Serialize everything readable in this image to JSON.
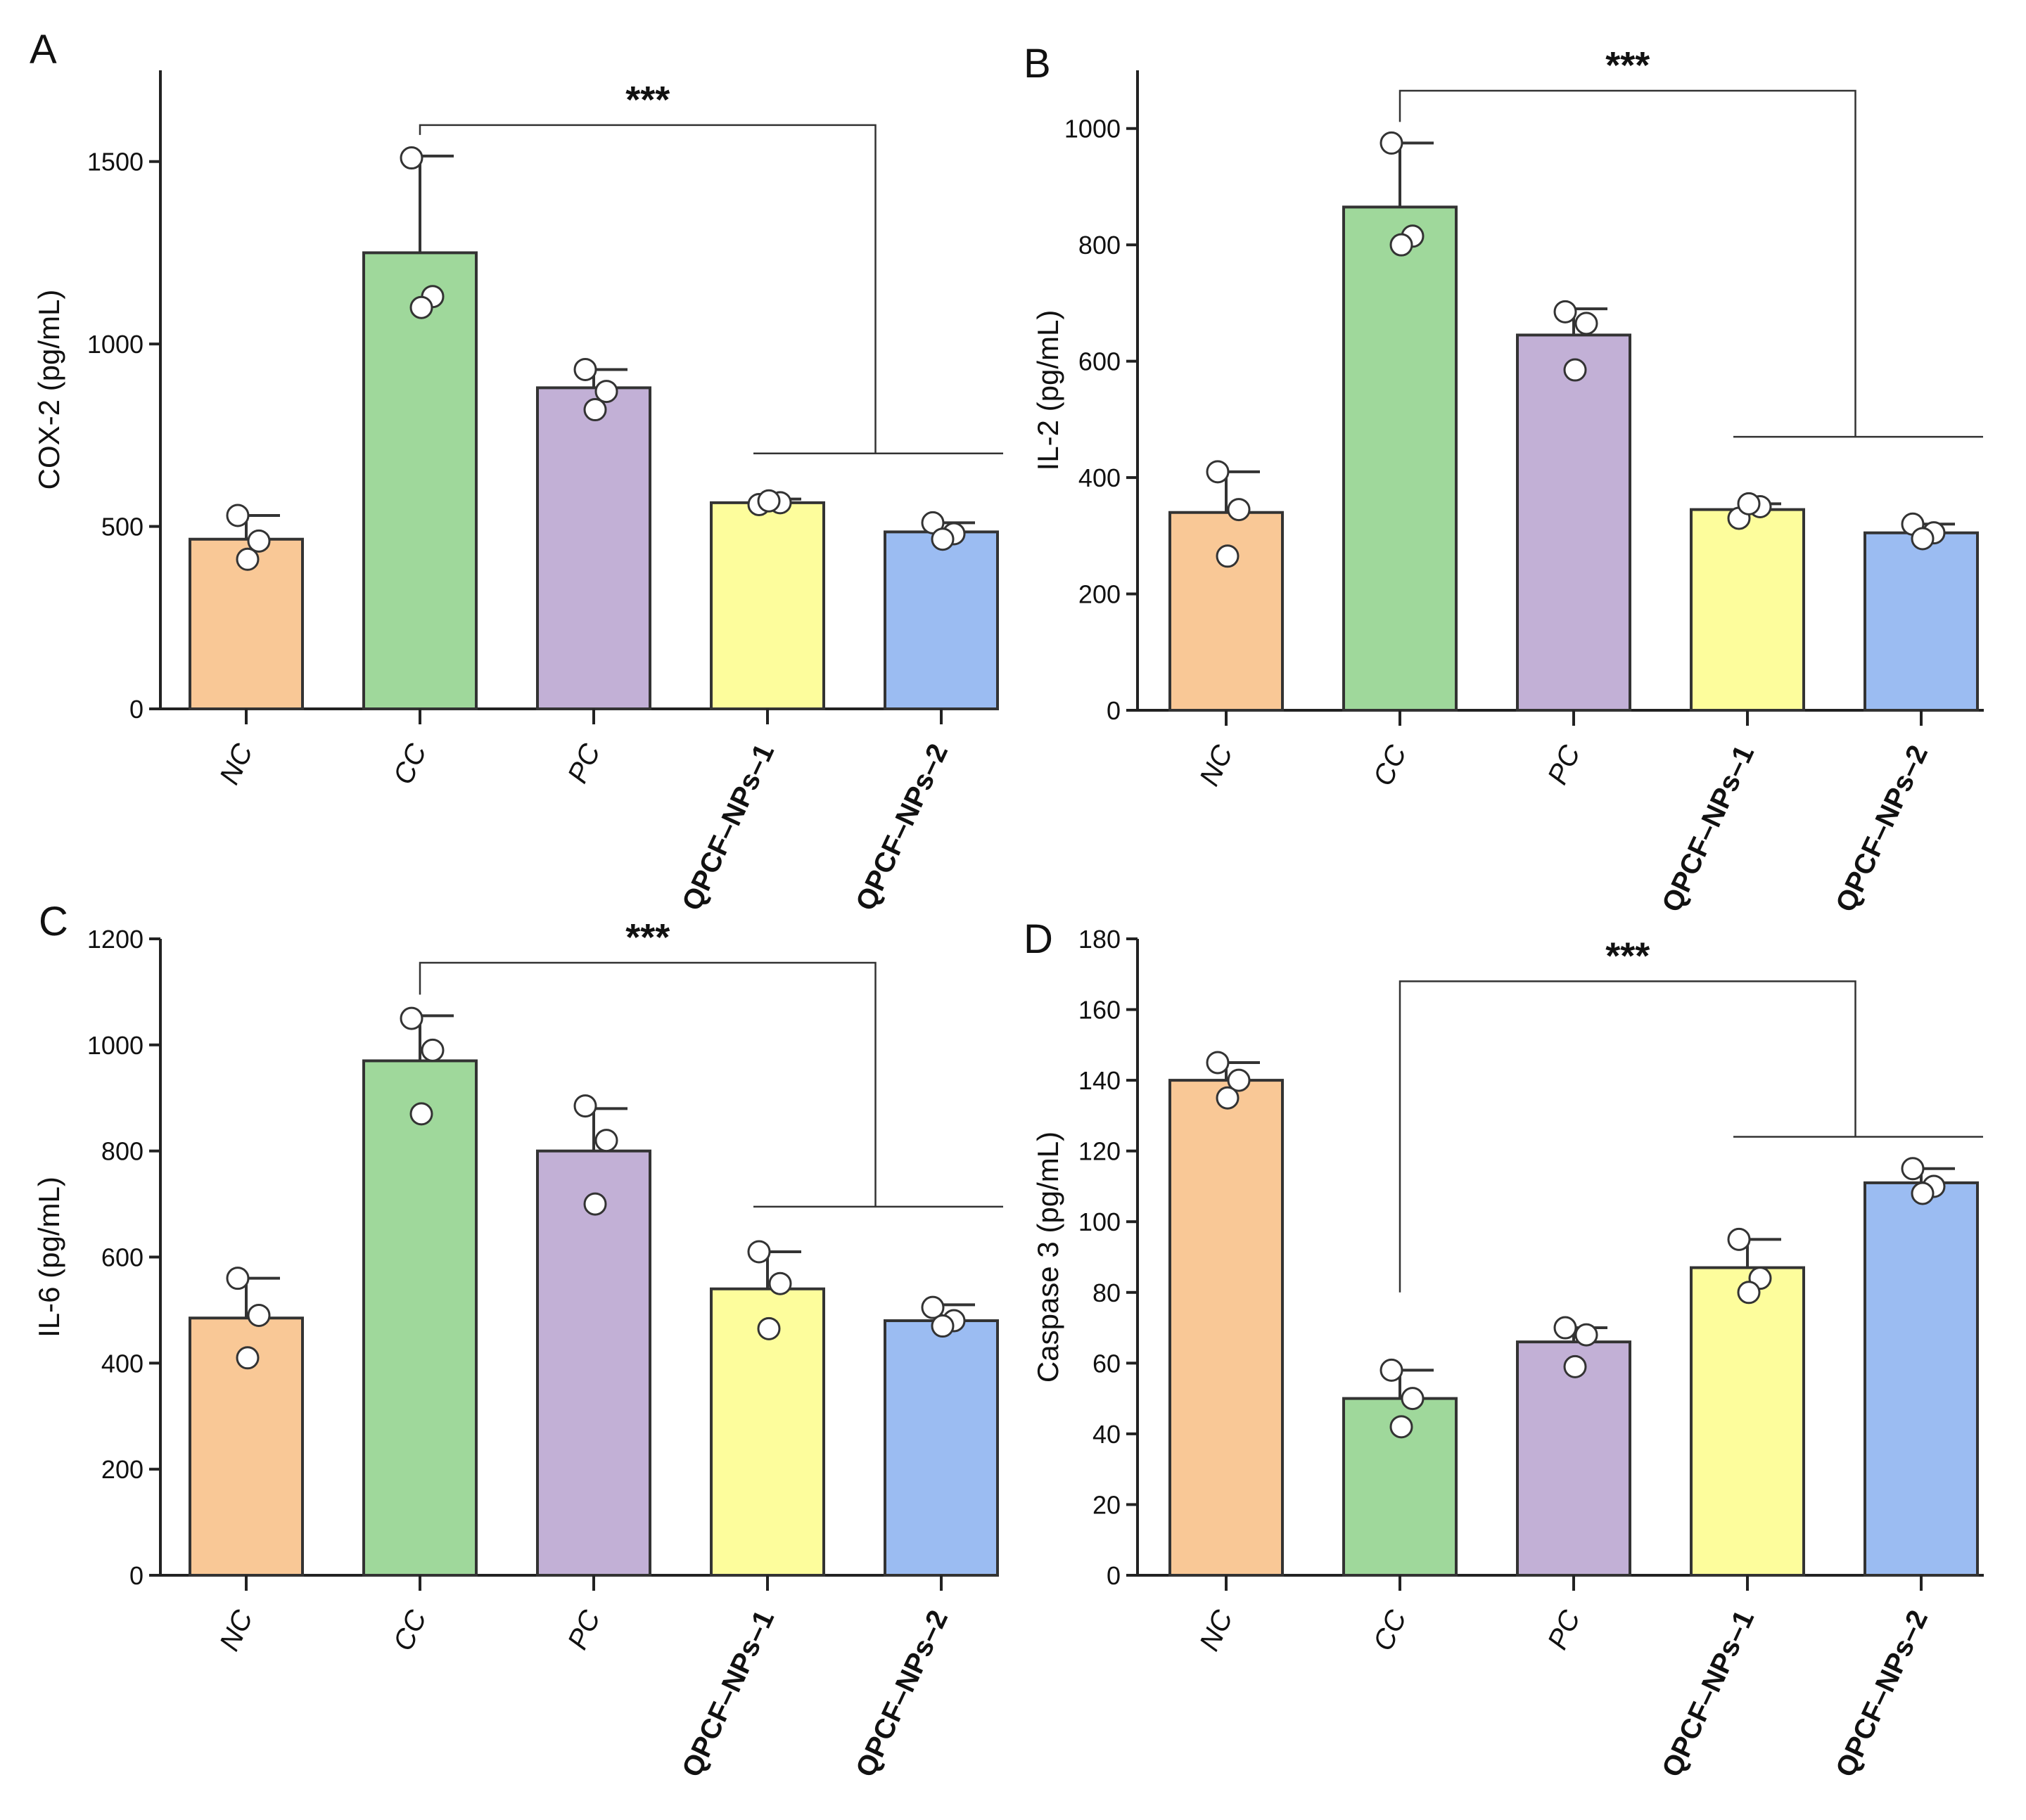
{
  "colors": {
    "NC": "#f9c896",
    "CC": "#9fd89b",
    "PC": "#c2b0d6",
    "QPCF-NPs-1": "#fdfd9c",
    "QPCF-NPs-2": "#9bbcf2"
  },
  "chart_data": [
    {
      "panel": "A",
      "type": "bar",
      "ylabel": "COX-2 (pg/mL)",
      "ylim": [
        0,
        1750
      ],
      "yticks": [
        0,
        500,
        1000,
        1500
      ],
      "categories": [
        "NC",
        "CC",
        "PC",
        "QPCF–NPs–1",
        "QPCF–NPs–2"
      ],
      "values": [
        465,
        1250,
        880,
        565,
        485
      ],
      "errors": [
        65,
        265,
        50,
        10,
        25
      ],
      "points": [
        [
          530,
          460,
          410
        ],
        [
          1510,
          1130,
          1100
        ],
        [
          930,
          870,
          820
        ],
        [
          560,
          565,
          570
        ],
        [
          510,
          480,
          465
        ]
      ],
      "significance": {
        "label": "***",
        "from": 1,
        "to_group": [
          3,
          4
        ],
        "bracket_y": 1600,
        "group_y": 700
      }
    },
    {
      "panel": "B",
      "type": "bar",
      "ylabel": "IL-2 (pg/mL)",
      "ylim": [
        0,
        1100
      ],
      "yticks": [
        0,
        200,
        400,
        600,
        800,
        1000
      ],
      "categories": [
        "NC",
        "CC",
        "PC",
        "QPCF–NPs–1",
        "QPCF–NPs–2"
      ],
      "values": [
        340,
        865,
        645,
        345,
        305
      ],
      "errors": [
        70,
        110,
        45,
        10,
        15
      ],
      "points": [
        [
          410,
          345,
          265
        ],
        [
          975,
          815,
          800
        ],
        [
          685,
          665,
          585
        ],
        [
          330,
          350,
          355
        ],
        [
          320,
          305,
          295
        ]
      ],
      "significance": {
        "label": "***",
        "from": 1,
        "to_group": [
          3,
          4
        ],
        "bracket_y": 1065,
        "group_y": 470
      }
    },
    {
      "panel": "C",
      "type": "bar",
      "ylabel": "IL-6 (pg/mL)",
      "ylim": [
        0,
        1200
      ],
      "yticks": [
        0,
        200,
        400,
        600,
        800,
        1000,
        1200
      ],
      "categories": [
        "NC",
        "CC",
        "PC",
        "QPCF–NPs–1",
        "QPCF–NPs–2"
      ],
      "values": [
        485,
        970,
        800,
        540,
        480
      ],
      "errors": [
        75,
        85,
        80,
        70,
        30
      ],
      "points": [
        [
          560,
          490,
          410
        ],
        [
          1050,
          990,
          870
        ],
        [
          885,
          820,
          700
        ],
        [
          610,
          550,
          465
        ],
        [
          505,
          480,
          470
        ]
      ],
      "significance": {
        "label": "***",
        "from": 1,
        "to_group": [
          3,
          4
        ],
        "bracket_y": 1155,
        "group_y": 695
      }
    },
    {
      "panel": "D",
      "type": "bar",
      "ylabel": "Caspase 3 (pg/mL)",
      "ylim": [
        0,
        180
      ],
      "yticks": [
        0,
        20,
        40,
        60,
        80,
        100,
        120,
        140,
        160,
        180
      ],
      "categories": [
        "NC",
        "CC",
        "PC",
        "QPCF–NPs–1",
        "QPCF–NPs–2"
      ],
      "values": [
        140,
        50,
        66,
        87,
        111
      ],
      "errors": [
        5,
        8,
        4,
        8,
        4
      ],
      "points": [
        [
          145,
          140,
          135
        ],
        [
          58,
          50,
          42
        ],
        [
          70,
          68,
          59
        ],
        [
          95,
          84,
          80
        ],
        [
          115,
          110,
          108
        ]
      ],
      "significance": {
        "label": "***",
        "from": 1,
        "to_group": [
          3,
          4
        ],
        "bracket_y": 168,
        "group_y": 124,
        "from_y": 80
      }
    }
  ]
}
